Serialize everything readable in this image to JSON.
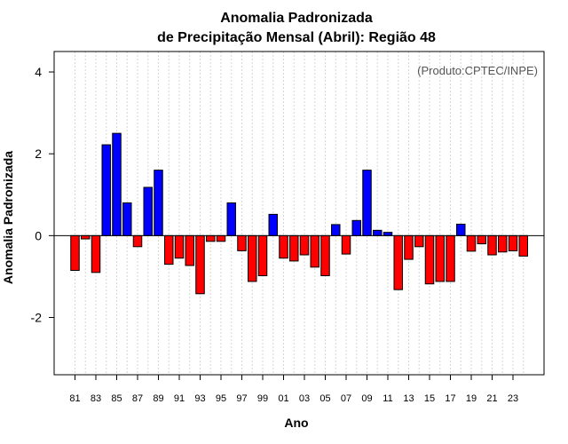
{
  "chart_data": {
    "type": "bar",
    "title": "Anomalia Padronizada",
    "subtitle": "de Precipitação Mensal (Abril): Região 48",
    "xlabel": "Ano",
    "ylabel": "Anomalia Padronizada",
    "annotation": "(Produto:CPTEC/INPE)",
    "ylim": [
      -3.4,
      4.5
    ],
    "yticks": [
      -2,
      0,
      2,
      4
    ],
    "yticks_labels": [
      "-2",
      "0",
      "2",
      "4"
    ],
    "grid": "vertical dotted",
    "colors": {
      "positive": "#0000ff",
      "negative": "#ff0000"
    },
    "categories": [
      "81",
      "82",
      "83",
      "84",
      "85",
      "86",
      "87",
      "88",
      "89",
      "90",
      "91",
      "92",
      "93",
      "94",
      "95",
      "96",
      "97",
      "98",
      "99",
      "00",
      "01",
      "02",
      "03",
      "04",
      "05",
      "06",
      "07",
      "08",
      "09",
      "10",
      "11",
      "12",
      "13",
      "14",
      "15",
      "16",
      "17",
      "18",
      "19",
      "20",
      "21",
      "22",
      "23",
      "24"
    ],
    "values": [
      -0.85,
      -0.08,
      -0.9,
      2.22,
      2.5,
      0.8,
      -0.27,
      1.18,
      1.6,
      -0.7,
      -0.55,
      -0.73,
      -1.42,
      -0.14,
      -0.14,
      0.8,
      -0.37,
      -1.12,
      -0.98,
      0.52,
      -0.55,
      -0.62,
      -0.47,
      -0.77,
      -0.98,
      0.27,
      -0.45,
      0.37,
      1.6,
      0.13,
      0.08,
      -1.32,
      -0.58,
      -0.27,
      -1.18,
      -1.12,
      -1.12,
      0.28,
      -0.38,
      -0.2,
      -0.47,
      -0.4,
      -0.37,
      -0.5
    ],
    "xtick_labels": [
      "81",
      "83",
      "85",
      "87",
      "89",
      "91",
      "93",
      "95",
      "97",
      "99",
      "01",
      "03",
      "05",
      "07",
      "09",
      "11",
      "13",
      "15",
      "17",
      "19",
      "21",
      "23"
    ]
  }
}
